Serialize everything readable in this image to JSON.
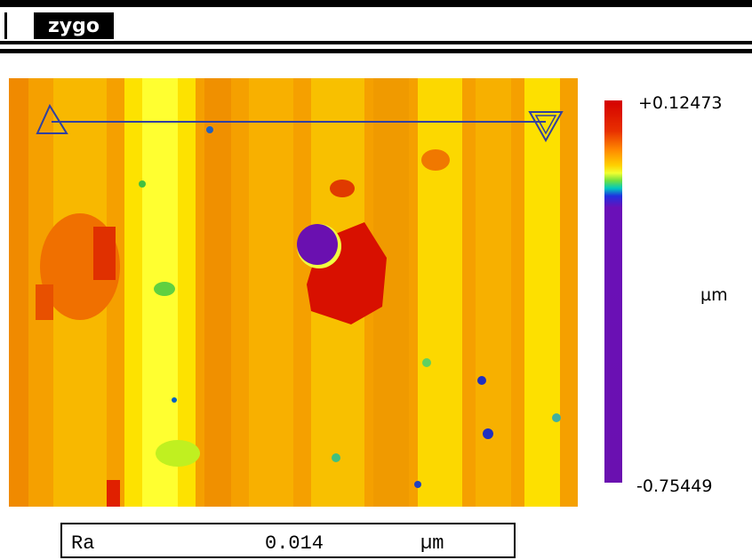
{
  "header": {
    "logo": "zygo"
  },
  "colorbar": {
    "max": "+0.12473",
    "unit": "µm",
    "min": "-0.75449"
  },
  "result": {
    "label": "Ra",
    "value": "0.014",
    "unit": "µm"
  }
}
